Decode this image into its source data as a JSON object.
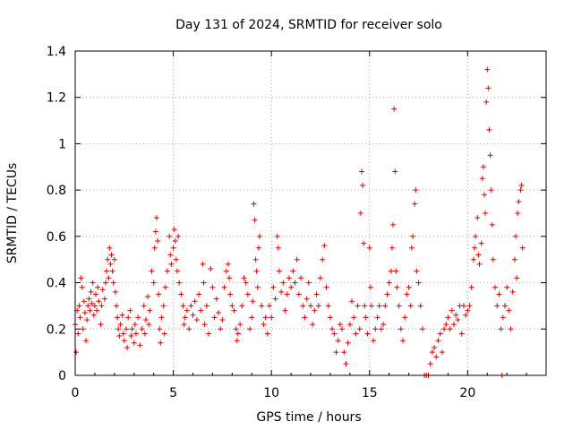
{
  "chart_data": {
    "type": "scatter",
    "title": "Day 131 of 2024, SRMTID for receiver solo",
    "xlabel": "GPS time / hours",
    "ylabel": "SRMTID / TECUs",
    "xlim": [
      0,
      24
    ],
    "ylim": [
      0,
      1.4
    ],
    "xticks": [
      0,
      5,
      10,
      15,
      20
    ],
    "xtick_labels": [
      "0",
      "5",
      "10",
      "15",
      "20"
    ],
    "yticks": [
      0,
      0.2,
      0.4,
      0.6,
      0.8,
      1.0,
      1.2,
      1.4
    ],
    "ytick_labels": [
      "0",
      "0.2",
      "0.4",
      "0.6",
      "0.8",
      "1",
      "1.2",
      "1.4"
    ],
    "grid": true,
    "marker": "plus",
    "color": "#e00000",
    "series": [
      {
        "name": "SRMTID",
        "points": [
          [
            0.0,
            0.22
          ],
          [
            0.05,
            0.1
          ],
          [
            0.1,
            0.28
          ],
          [
            0.15,
            0.18
          ],
          [
            0.2,
            0.3
          ],
          [
            0.25,
            0.25
          ],
          [
            0.3,
            0.42
          ],
          [
            0.35,
            0.38
          ],
          [
            0.4,
            0.2
          ],
          [
            0.45,
            0.32
          ],
          [
            0.5,
            0.27
          ],
          [
            0.55,
            0.15
          ],
          [
            0.6,
            0.24
          ],
          [
            0.65,
            0.3
          ],
          [
            0.7,
            0.33
          ],
          [
            0.75,
            0.28
          ],
          [
            0.8,
            0.36
          ],
          [
            0.85,
            0.31
          ],
          [
            0.9,
            0.4
          ],
          [
            0.95,
            0.26
          ],
          [
            1.0,
            0.3
          ],
          [
            1.05,
            0.35
          ],
          [
            1.1,
            0.28
          ],
          [
            1.15,
            0.38
          ],
          [
            1.2,
            0.32
          ],
          [
            1.3,
            0.22
          ],
          [
            1.35,
            0.3
          ],
          [
            1.4,
            0.37
          ],
          [
            1.5,
            0.33
          ],
          [
            1.55,
            0.4
          ],
          [
            1.6,
            0.45
          ],
          [
            1.65,
            0.5
          ],
          [
            1.7,
            0.42
          ],
          [
            1.75,
            0.55
          ],
          [
            1.8,
            0.48
          ],
          [
            1.85,
            0.52
          ],
          [
            1.9,
            0.45
          ],
          [
            1.95,
            0.4
          ],
          [
            2.0,
            0.5
          ],
          [
            2.05,
            0.36
          ],
          [
            2.1,
            0.3
          ],
          [
            2.15,
            0.25
          ],
          [
            2.2,
            0.2
          ],
          [
            2.25,
            0.17
          ],
          [
            2.3,
            0.22
          ],
          [
            2.4,
            0.26
          ],
          [
            2.45,
            0.18
          ],
          [
            2.5,
            0.15
          ],
          [
            2.6,
            0.2
          ],
          [
            2.65,
            0.12
          ],
          [
            2.7,
            0.25
          ],
          [
            2.8,
            0.28
          ],
          [
            2.85,
            0.17
          ],
          [
            2.9,
            0.2
          ],
          [
            3.0,
            0.14
          ],
          [
            3.05,
            0.22
          ],
          [
            3.1,
            0.18
          ],
          [
            3.2,
            0.25
          ],
          [
            3.3,
            0.13
          ],
          [
            3.4,
            0.2
          ],
          [
            3.5,
            0.3
          ],
          [
            3.55,
            0.18
          ],
          [
            3.6,
            0.24
          ],
          [
            3.7,
            0.34
          ],
          [
            3.75,
            0.22
          ],
          [
            3.8,
            0.28
          ],
          [
            3.9,
            0.45
          ],
          [
            4.0,
            0.4
          ],
          [
            4.05,
            0.55
          ],
          [
            4.1,
            0.62
          ],
          [
            4.15,
            0.68
          ],
          [
            4.2,
            0.58
          ],
          [
            4.25,
            0.35
          ],
          [
            4.3,
            0.2
          ],
          [
            4.35,
            0.14
          ],
          [
            4.4,
            0.25
          ],
          [
            4.5,
            0.3
          ],
          [
            4.55,
            0.18
          ],
          [
            4.6,
            0.38
          ],
          [
            4.7,
            0.45
          ],
          [
            4.8,
            0.6
          ],
          [
            4.85,
            0.52
          ],
          [
            4.9,
            0.48
          ],
          [
            5.0,
            0.55
          ],
          [
            5.05,
            0.63
          ],
          [
            5.1,
            0.58
          ],
          [
            5.15,
            0.5
          ],
          [
            5.2,
            0.45
          ],
          [
            5.25,
            0.6
          ],
          [
            5.3,
            0.4
          ],
          [
            5.4,
            0.35
          ],
          [
            5.5,
            0.3
          ],
          [
            5.55,
            0.22
          ],
          [
            5.6,
            0.25
          ],
          [
            5.7,
            0.28
          ],
          [
            5.8,
            0.2
          ],
          [
            5.9,
            0.3
          ],
          [
            6.0,
            0.26
          ],
          [
            6.1,
            0.32
          ],
          [
            6.2,
            0.24
          ],
          [
            6.3,
            0.35
          ],
          [
            6.4,
            0.28
          ],
          [
            6.5,
            0.48
          ],
          [
            6.55,
            0.4
          ],
          [
            6.6,
            0.22
          ],
          [
            6.7,
            0.3
          ],
          [
            6.8,
            0.18
          ],
          [
            6.9,
            0.46
          ],
          [
            7.0,
            0.38
          ],
          [
            7.1,
            0.25
          ],
          [
            7.2,
            0.33
          ],
          [
            7.3,
            0.27
          ],
          [
            7.4,
            0.2
          ],
          [
            7.5,
            0.24
          ],
          [
            7.6,
            0.38
          ],
          [
            7.7,
            0.45
          ],
          [
            7.8,
            0.48
          ],
          [
            7.85,
            0.42
          ],
          [
            7.9,
            0.35
          ],
          [
            8.0,
            0.3
          ],
          [
            8.1,
            0.28
          ],
          [
            8.2,
            0.2
          ],
          [
            8.25,
            0.15
          ],
          [
            8.3,
            0.18
          ],
          [
            8.4,
            0.22
          ],
          [
            8.5,
            0.3
          ],
          [
            8.6,
            0.42
          ],
          [
            8.7,
            0.4
          ],
          [
            8.8,
            0.35
          ],
          [
            8.9,
            0.2
          ],
          [
            9.0,
            0.25
          ],
          [
            9.05,
            0.32
          ],
          [
            9.1,
            0.74
          ],
          [
            9.15,
            0.67
          ],
          [
            9.2,
            0.5
          ],
          [
            9.25,
            0.45
          ],
          [
            9.3,
            0.38
          ],
          [
            9.35,
            0.55
          ],
          [
            9.4,
            0.6
          ],
          [
            9.5,
            0.3
          ],
          [
            9.6,
            0.22
          ],
          [
            9.7,
            0.25
          ],
          [
            9.8,
            0.18
          ],
          [
            9.9,
            0.3
          ],
          [
            10.0,
            0.25
          ],
          [
            10.1,
            0.38
          ],
          [
            10.2,
            0.33
          ],
          [
            10.3,
            0.6
          ],
          [
            10.35,
            0.55
          ],
          [
            10.4,
            0.45
          ],
          [
            10.5,
            0.36
          ],
          [
            10.6,
            0.4
          ],
          [
            10.7,
            0.28
          ],
          [
            10.8,
            0.35
          ],
          [
            10.9,
            0.42
          ],
          [
            11.0,
            0.38
          ],
          [
            11.1,
            0.45
          ],
          [
            11.2,
            0.4
          ],
          [
            11.3,
            0.5
          ],
          [
            11.4,
            0.35
          ],
          [
            11.5,
            0.42
          ],
          [
            11.6,
            0.3
          ],
          [
            11.7,
            0.25
          ],
          [
            11.8,
            0.33
          ],
          [
            11.9,
            0.4
          ],
          [
            12.0,
            0.3
          ],
          [
            12.1,
            0.22
          ],
          [
            12.2,
            0.28
          ],
          [
            12.3,
            0.35
          ],
          [
            12.4,
            0.3
          ],
          [
            12.5,
            0.42
          ],
          [
            12.6,
            0.5
          ],
          [
            12.7,
            0.56
          ],
          [
            12.8,
            0.38
          ],
          [
            12.9,
            0.3
          ],
          [
            13.0,
            0.25
          ],
          [
            13.1,
            0.2
          ],
          [
            13.2,
            0.18
          ],
          [
            13.3,
            0.1
          ],
          [
            13.4,
            0.15
          ],
          [
            13.5,
            0.22
          ],
          [
            13.6,
            0.2
          ],
          [
            13.7,
            0.1
          ],
          [
            13.8,
            0.05
          ],
          [
            13.9,
            0.14
          ],
          [
            14.0,
            0.22
          ],
          [
            14.1,
            0.32
          ],
          [
            14.2,
            0.25
          ],
          [
            14.3,
            0.18
          ],
          [
            14.4,
            0.3
          ],
          [
            14.5,
            0.2
          ],
          [
            14.55,
            0.7
          ],
          [
            14.6,
            0.88
          ],
          [
            14.65,
            0.82
          ],
          [
            14.7,
            0.57
          ],
          [
            14.75,
            0.3
          ],
          [
            14.8,
            0.25
          ],
          [
            14.9,
            0.18
          ],
          [
            15.0,
            0.55
          ],
          [
            15.05,
            0.38
          ],
          [
            15.1,
            0.3
          ],
          [
            15.2,
            0.15
          ],
          [
            15.3,
            0.2
          ],
          [
            15.4,
            0.25
          ],
          [
            15.5,
            0.3
          ],
          [
            15.6,
            0.2
          ],
          [
            15.7,
            0.22
          ],
          [
            15.8,
            0.3
          ],
          [
            15.9,
            0.35
          ],
          [
            16.0,
            0.4
          ],
          [
            16.1,
            0.45
          ],
          [
            16.15,
            0.55
          ],
          [
            16.2,
            0.65
          ],
          [
            16.25,
            1.15
          ],
          [
            16.3,
            0.88
          ],
          [
            16.35,
            0.45
          ],
          [
            16.4,
            0.38
          ],
          [
            16.5,
            0.3
          ],
          [
            16.6,
            0.2
          ],
          [
            16.7,
            0.15
          ],
          [
            16.8,
            0.25
          ],
          [
            16.9,
            0.35
          ],
          [
            17.0,
            0.38
          ],
          [
            17.1,
            0.3
          ],
          [
            17.15,
            0.55
          ],
          [
            17.2,
            0.6
          ],
          [
            17.3,
            0.74
          ],
          [
            17.35,
            0.8
          ],
          [
            17.4,
            0.45
          ],
          [
            17.5,
            0.4
          ],
          [
            17.6,
            0.3
          ],
          [
            17.7,
            0.2
          ],
          [
            17.8,
            0.0
          ],
          [
            17.9,
            0.0
          ],
          [
            18.0,
            0.0
          ],
          [
            18.1,
            0.05
          ],
          [
            18.2,
            0.1
          ],
          [
            18.3,
            0.12
          ],
          [
            18.4,
            0.08
          ],
          [
            18.5,
            0.15
          ],
          [
            18.6,
            0.18
          ],
          [
            18.7,
            0.1
          ],
          [
            18.8,
            0.2
          ],
          [
            18.9,
            0.22
          ],
          [
            19.0,
            0.25
          ],
          [
            19.1,
            0.2
          ],
          [
            19.2,
            0.28
          ],
          [
            19.3,
            0.22
          ],
          [
            19.4,
            0.26
          ],
          [
            19.5,
            0.24
          ],
          [
            19.6,
            0.3
          ],
          [
            19.7,
            0.18
          ],
          [
            19.8,
            0.3
          ],
          [
            19.9,
            0.26
          ],
          [
            20.0,
            0.28
          ],
          [
            20.1,
            0.3
          ],
          [
            20.2,
            0.38
          ],
          [
            20.3,
            0.5
          ],
          [
            20.35,
            0.55
          ],
          [
            20.4,
            0.6
          ],
          [
            20.5,
            0.68
          ],
          [
            20.55,
            0.52
          ],
          [
            20.6,
            0.48
          ],
          [
            20.7,
            0.57
          ],
          [
            20.75,
            0.85
          ],
          [
            20.8,
            0.9
          ],
          [
            20.85,
            0.78
          ],
          [
            20.9,
            0.7
          ],
          [
            20.95,
            1.18
          ],
          [
            21.0,
            1.32
          ],
          [
            21.05,
            1.24
          ],
          [
            21.1,
            1.06
          ],
          [
            21.15,
            0.95
          ],
          [
            21.2,
            0.8
          ],
          [
            21.25,
            0.65
          ],
          [
            21.3,
            0.5
          ],
          [
            21.4,
            0.38
          ],
          [
            21.5,
            0.3
          ],
          [
            21.6,
            0.35
          ],
          [
            21.7,
            0.2
          ],
          [
            21.75,
            0.0
          ],
          [
            21.8,
            0.25
          ],
          [
            21.9,
            0.3
          ],
          [
            22.0,
            0.38
          ],
          [
            22.1,
            0.28
          ],
          [
            22.2,
            0.2
          ],
          [
            22.3,
            0.36
          ],
          [
            22.4,
            0.5
          ],
          [
            22.45,
            0.6
          ],
          [
            22.5,
            0.42
          ],
          [
            22.55,
            0.7
          ],
          [
            22.6,
            0.75
          ],
          [
            22.7,
            0.8
          ],
          [
            22.75,
            0.82
          ],
          [
            22.8,
            0.55
          ]
        ]
      }
    ]
  }
}
